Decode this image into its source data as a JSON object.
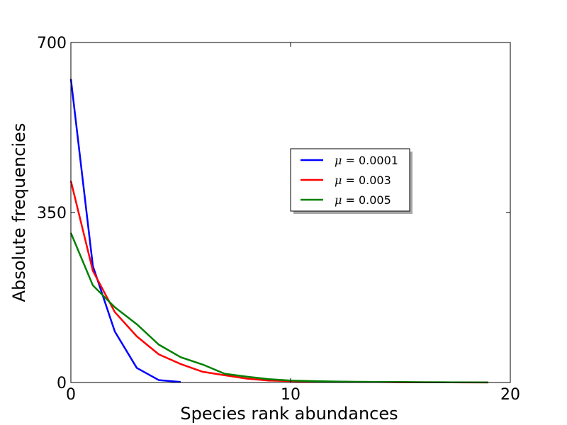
{
  "chart_data": {
    "type": "line",
    "title": "",
    "xlabel": "Species rank abundances",
    "ylabel": "Absolute frequencies",
    "xlim": [
      0,
      20
    ],
    "ylim": [
      0,
      700
    ],
    "xticks": [
      0,
      10,
      20
    ],
    "yticks": [
      0,
      350,
      700
    ],
    "x_tick_labels": [
      "0",
      "10",
      "20"
    ],
    "y_tick_labels": [
      "0",
      "350",
      "700"
    ],
    "grid": false,
    "legend_position": "center-right",
    "series": [
      {
        "name": "μ = 0.0001",
        "name_symbol": "μ",
        "name_value": " = 0.0001",
        "color": "#0000ff",
        "x": [
          0,
          1,
          2,
          3,
          4,
          5
        ],
        "y": [
          625,
          240,
          105,
          30,
          5,
          1
        ]
      },
      {
        "name": "μ = 0.003",
        "name_symbol": "μ",
        "name_value": " = 0.003",
        "color": "#ff0000",
        "x": [
          0,
          1,
          2,
          3,
          4,
          5,
          6,
          7,
          8,
          9,
          10,
          11,
          12,
          13,
          14,
          15,
          16,
          17,
          18,
          19
        ],
        "y": [
          415,
          230,
          145,
          95,
          58,
          38,
          22,
          15,
          8,
          4,
          3,
          2,
          1.5,
          1,
          1,
          0.5,
          0.5,
          0.3,
          0.2,
          0.1
        ]
      },
      {
        "name": "μ = 0.005",
        "name_symbol": "μ",
        "name_value": " = 0.005",
        "color": "#008000",
        "x": [
          0,
          1,
          2,
          3,
          4,
          5,
          6,
          7,
          8,
          9,
          10,
          11,
          12,
          13,
          14,
          15,
          16,
          17,
          18,
          19
        ],
        "y": [
          308,
          200,
          155,
          120,
          78,
          52,
          37,
          18,
          12,
          7,
          4,
          3,
          2,
          1.5,
          1,
          1,
          0.5,
          0.5,
          0.3,
          0.2
        ]
      }
    ]
  }
}
